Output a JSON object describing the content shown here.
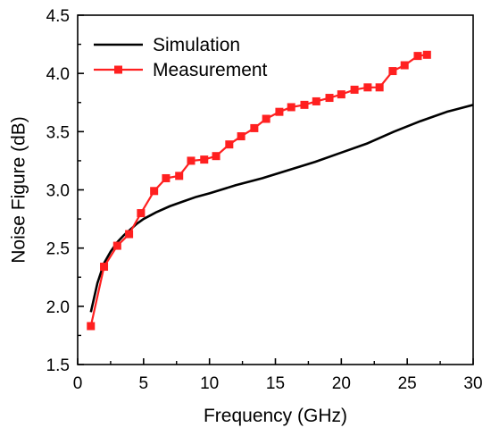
{
  "chart_data": {
    "type": "line",
    "title": "",
    "xlabel": "Frequency (GHz)",
    "ylabel": "Noise Figure (dB)",
    "xlim": [
      0,
      30
    ],
    "ylim": [
      1.5,
      4.5
    ],
    "xticks": [
      0,
      5,
      10,
      15,
      20,
      25,
      30
    ],
    "yticks": [
      1.5,
      2.0,
      2.5,
      3.0,
      3.5,
      4.0,
      4.5
    ],
    "xtick_labels": [
      "0",
      "5",
      "10",
      "15",
      "20",
      "25",
      "30"
    ],
    "ytick_labels": [
      "1.5",
      "2.0",
      "2.5",
      "3.0",
      "3.5",
      "4.0",
      "4.5"
    ],
    "grid": false,
    "legend_position": "top-left",
    "series": [
      {
        "name": "Simulation",
        "color": "#000000",
        "marker": "none",
        "x": [
          1,
          1.5,
          2,
          2.5,
          3,
          3.5,
          4,
          4.5,
          5,
          5.5,
          6,
          7,
          8,
          9,
          10,
          12,
          14,
          16,
          18,
          20,
          22,
          24,
          26,
          28,
          30
        ],
        "y": [
          1.95,
          2.2,
          2.37,
          2.47,
          2.55,
          2.61,
          2.66,
          2.71,
          2.75,
          2.78,
          2.81,
          2.86,
          2.9,
          2.94,
          2.97,
          3.04,
          3.1,
          3.17,
          3.24,
          3.32,
          3.4,
          3.5,
          3.59,
          3.67,
          3.73
        ]
      },
      {
        "name": "Measurement",
        "color": "#ff2020",
        "marker": "square",
        "x": [
          1,
          2,
          3,
          3.9,
          4.8,
          5.8,
          6.7,
          7.7,
          8.6,
          9.6,
          10.5,
          11.5,
          12.4,
          13.4,
          14.3,
          15.3,
          16.2,
          17.2,
          18.1,
          19.1,
          20,
          21,
          22,
          22.9,
          23.9,
          24.8,
          25.8,
          26.5
        ],
        "y": [
          1.83,
          2.34,
          2.52,
          2.62,
          2.8,
          2.99,
          3.1,
          3.12,
          3.25,
          3.26,
          3.29,
          3.39,
          3.46,
          3.53,
          3.61,
          3.67,
          3.71,
          3.73,
          3.76,
          3.79,
          3.82,
          3.86,
          3.88,
          3.88,
          4.02,
          4.07,
          4.15,
          4.16
        ]
      }
    ]
  }
}
